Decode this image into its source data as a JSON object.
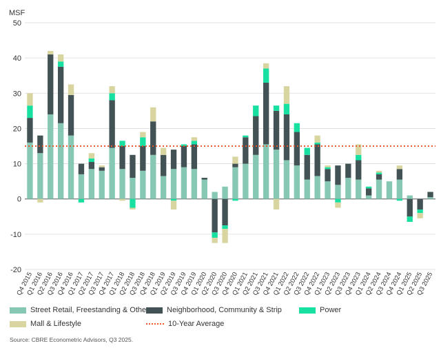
{
  "chart_data": {
    "type": "bar",
    "stacked": true,
    "ylabel": "MSF",
    "ylim": [
      -20,
      50
    ],
    "yticks": [
      -20,
      -10,
      0,
      10,
      20,
      30,
      40,
      50
    ],
    "reference_line": {
      "name": "10-Year Average",
      "value": 15
    },
    "categories": [
      "Q4 2015",
      "Q1 2016",
      "Q2 2016",
      "Q3 2016",
      "Q4 2016",
      "Q1 2017",
      "Q2 2017",
      "Q3 2017",
      "Q4 2017",
      "Q1 2018",
      "Q2 2018",
      "Q3 2018",
      "Q4 2018",
      "Q1 2019",
      "Q2 2019",
      "Q3 2019",
      "Q4 2019",
      "Q1 2020",
      "Q2 2020",
      "Q3 2020",
      "Q4 2020",
      "Q1 2021",
      "Q2 2021",
      "Q3 2021",
      "Q4 2021",
      "Q1 2022",
      "Q2 2022",
      "Q3 2022",
      "Q4 2022",
      "Q1 2023",
      "Q2 2023",
      "Q3 2023",
      "Q4 2023",
      "Q1 2024",
      "Q2 2024",
      "Q3 2024",
      "Q4 2024",
      "Q1 2025",
      "Q2 2025",
      "Q3 2025"
    ],
    "x_tick_labels": [
      "Q4 2015",
      "Q1 2016",
      "Q2 2016",
      "Q3 2016",
      "Q4 2016",
      "Q1 2017",
      "Q2 2017",
      "Q3 2017",
      "Q4 2017",
      "Q1 2018",
      "Q2 2018",
      "Q3 2018",
      "Q4 2018",
      "Q1 2019",
      "Q2 2019",
      "Q3 2019",
      "Q4 2019",
      "Q1 2020",
      "Q2 2020",
      "Q3 2020",
      "Q4 2020",
      "Q1 2021",
      "Q2 2021",
      "Q3 2021",
      "Q4 2021",
      "Q1 2022",
      "Q2 2022",
      "Q3 2022",
      "Q4 2022",
      "Q1 2023",
      "Q2 2023",
      "Q3 2023",
      "Q4 2023",
      "Q1 2024",
      "Q2 2024",
      "Q3 2024",
      "Q4 2024",
      "Q1 2025",
      "Q2 2025",
      "Q3 2025"
    ],
    "series": [
      {
        "name": "Street Retail, Freestanding & Other",
        "color": "#86c8b4",
        "values": [
          16,
          13,
          24,
          21.5,
          18,
          7,
          8.5,
          8,
          14.5,
          8.5,
          6,
          8,
          12.5,
          6.5,
          8.5,
          9,
          8.5,
          5.5,
          2,
          3.5,
          9,
          10,
          12.5,
          15.5,
          14,
          11,
          9.5,
          5.5,
          6.5,
          5,
          4,
          6,
          5.5,
          1,
          5.5,
          5,
          5.5,
          1,
          0,
          0.5
        ]
      },
      {
        "name": "Neighborhood, Community & Strip",
        "color": "#435254",
        "values": [
          7,
          5,
          17,
          16,
          11.5,
          3,
          2,
          1,
          13.5,
          6.5,
          6.5,
          7,
          9.5,
          6,
          5.5,
          6,
          7,
          0.5,
          -9.5,
          -7.5,
          1,
          7.5,
          11,
          17.5,
          11,
          13,
          9.5,
          7,
          9,
          3.5,
          5.5,
          4,
          5.5,
          2,
          1.5,
          0,
          3,
          -5,
          -3,
          1.5
        ]
      },
      {
        "name": "Power",
        "color": "#18e0a0",
        "values": [
          3.5,
          0,
          0,
          1.5,
          0,
          -1,
          1,
          0,
          2,
          1.5,
          -2.5,
          2.5,
          0,
          0,
          -0.5,
          0.5,
          1,
          0,
          -1.5,
          -1,
          -0.5,
          0.5,
          3,
          4,
          1.5,
          3,
          2.5,
          2,
          0.5,
          0.5,
          -1,
          0,
          1.5,
          0.5,
          0.5,
          0,
          -0.5,
          -1.5,
          -1,
          0
        ]
      },
      {
        "name": "Mall & Lifestyle",
        "color": "#d9d5a0",
        "values": [
          3.5,
          -1,
          1,
          2,
          3,
          0,
          1.5,
          0.5,
          2,
          -0.5,
          -0.5,
          1.5,
          4,
          2,
          -2.5,
          0,
          1,
          0,
          -1.5,
          -4,
          2,
          0,
          0,
          1.5,
          -3,
          5,
          0,
          0,
          2,
          0.5,
          -1.5,
          0,
          3,
          0,
          0.5,
          0,
          1,
          0,
          -1.5,
          0
        ]
      }
    ]
  },
  "legend": {
    "items": [
      {
        "label": "Street Retail, Freestanding & Other",
        "color": "#86c8b4"
      },
      {
        "label": "Neighborhood, Community & Strip",
        "color": "#435254"
      },
      {
        "label": "Power",
        "color": "#18e0a0"
      },
      {
        "label": "Mall & Lifestyle",
        "color": "#d9d5a0"
      },
      {
        "label": "10-Year Average",
        "color": "#e8562f"
      }
    ]
  },
  "source": "Source: CBRE Econometric Advisors, Q3 2025."
}
